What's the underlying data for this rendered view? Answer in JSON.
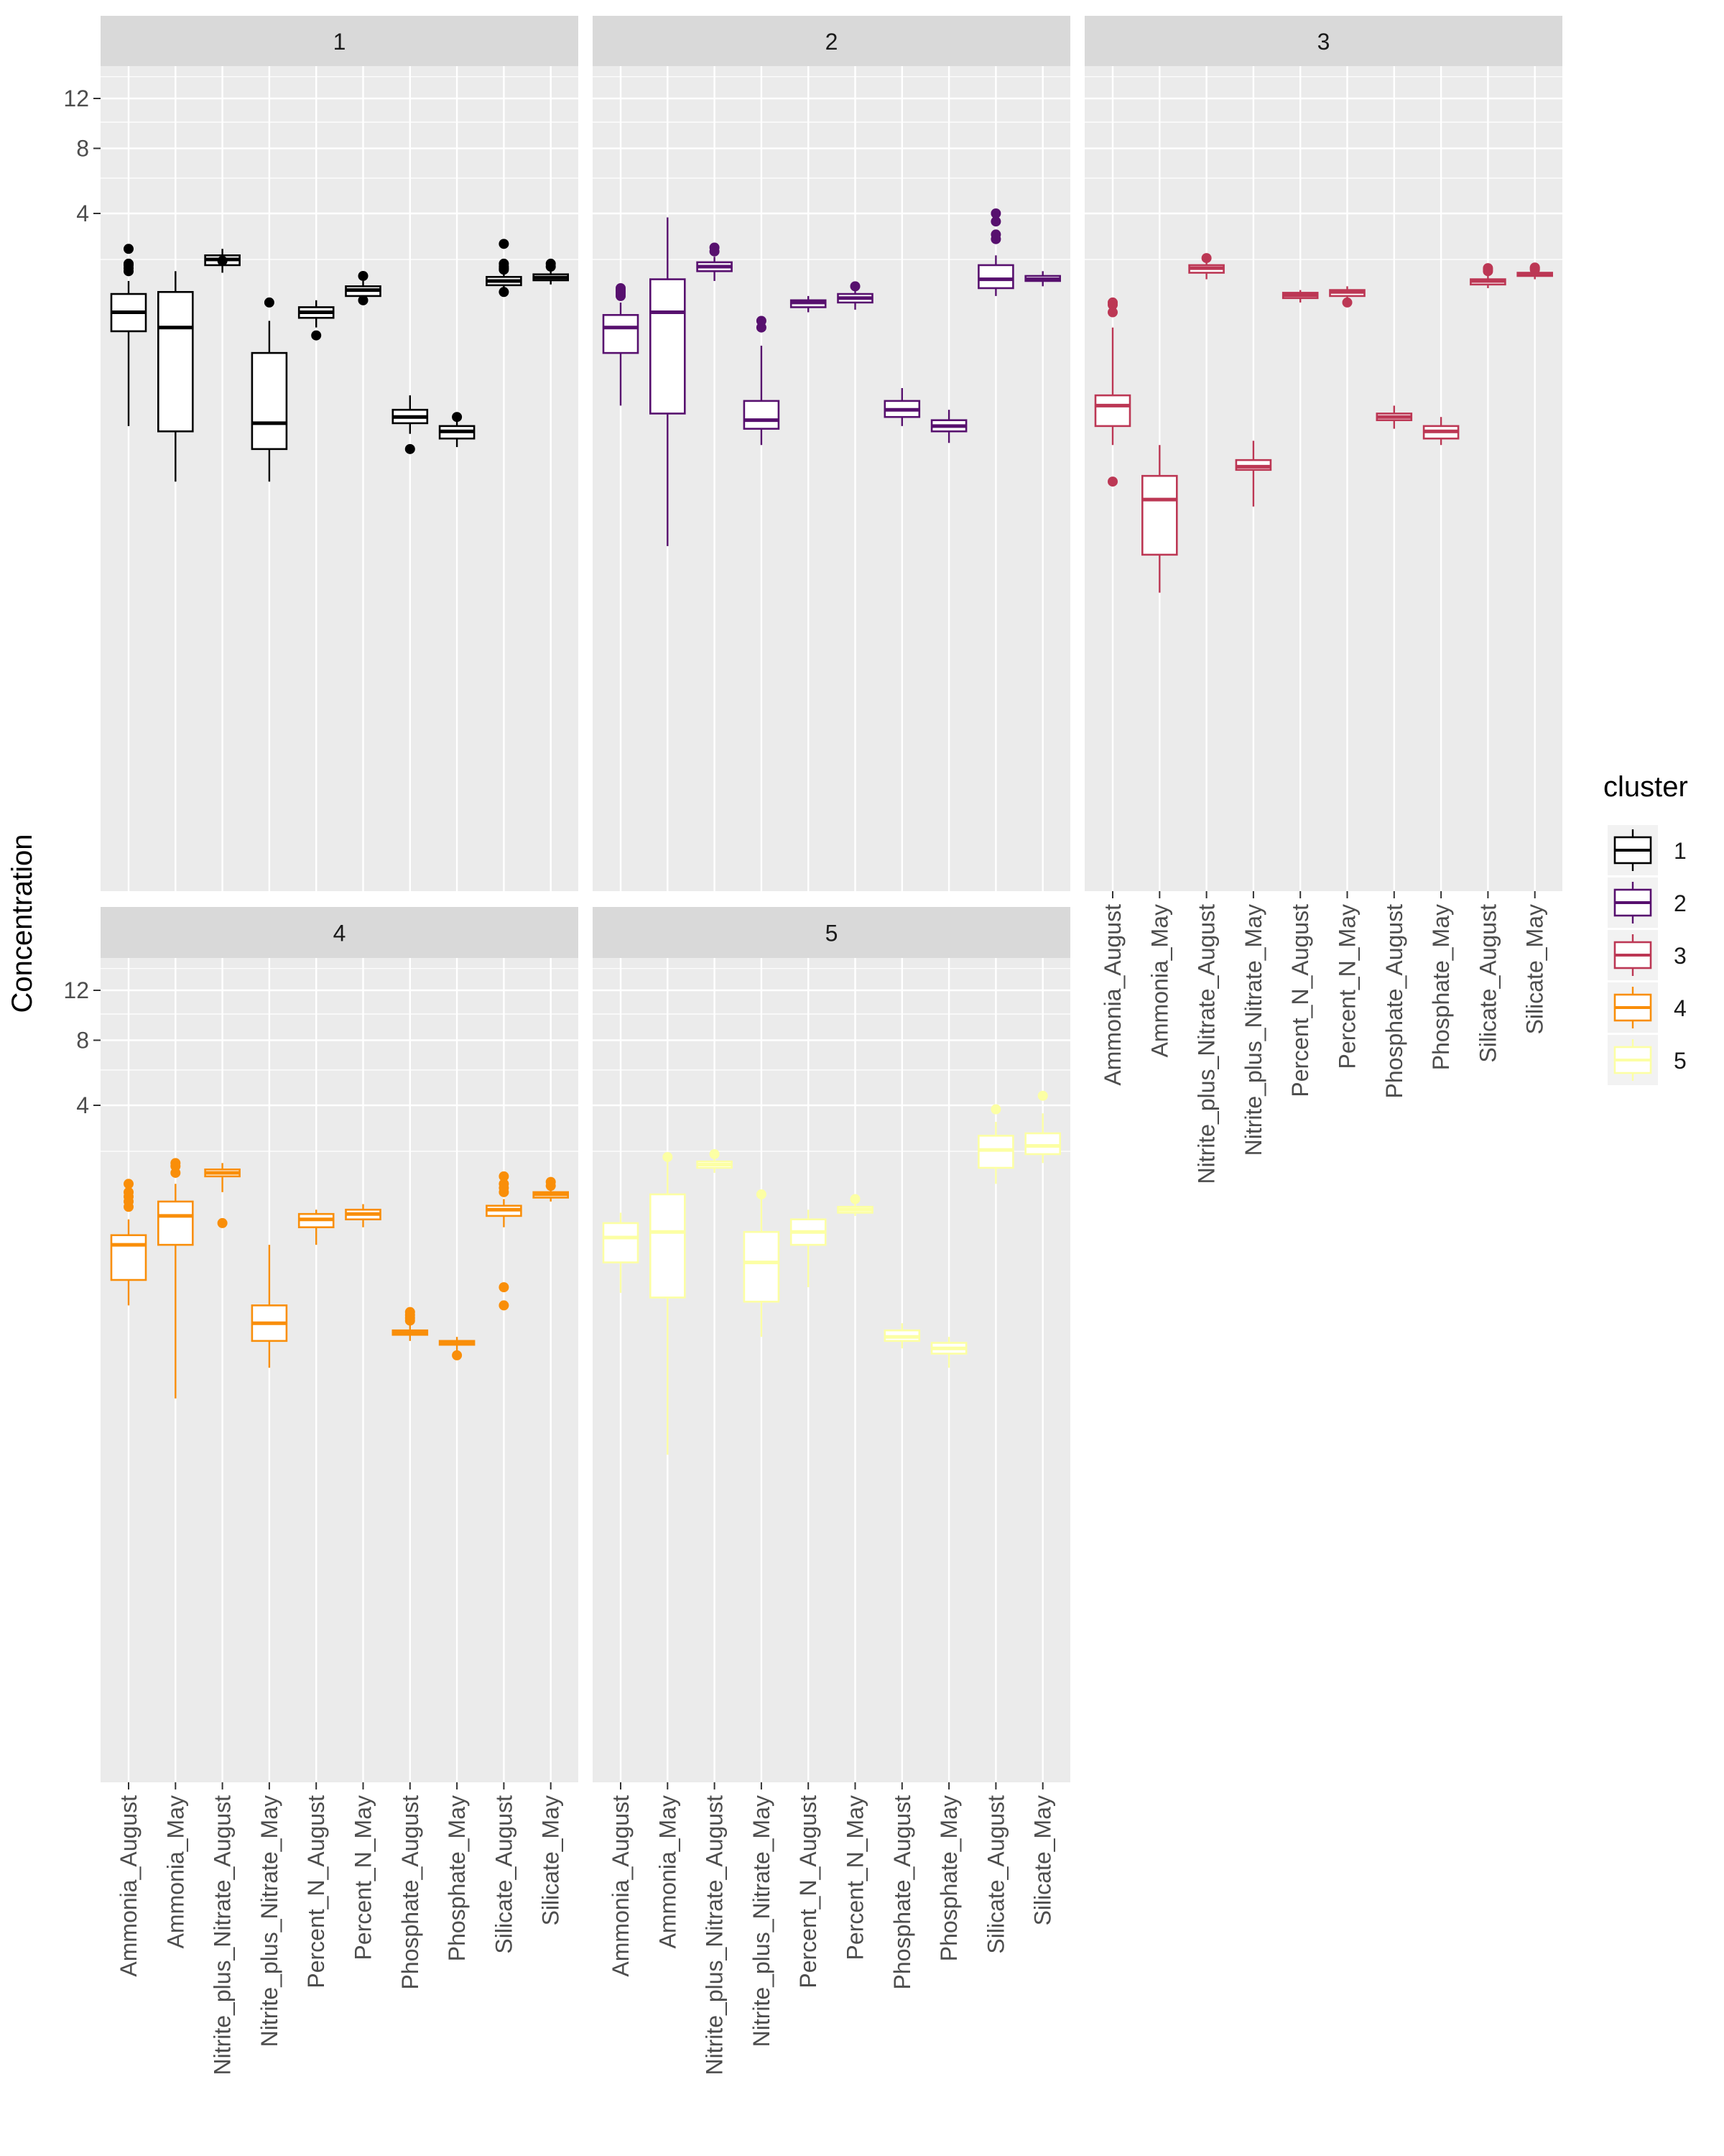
{
  "chart_data": {
    "type": "boxplot",
    "facet_by": "cluster",
    "ylabel": "Concentration",
    "yscale": "sqrt",
    "yticks": [
      4,
      8,
      12
    ],
    "categories": [
      "Ammonia_August",
      "Ammonia_May",
      "Nitrite_plus_Nitrate_August",
      "Nitrite_plus_Nitrate_May",
      "Percent_N_August",
      "Percent_N_May",
      "Phosphate_August",
      "Phosphate_May",
      "Silicate_August",
      "Silicate_May"
    ],
    "legend": {
      "title": "cluster",
      "position": "right",
      "entries": [
        {
          "label": "1",
          "color": "#000000"
        },
        {
          "label": "2",
          "color": "#57106e"
        },
        {
          "label": "3",
          "color": "#bc3754"
        },
        {
          "label": "4",
          "color": "#f98e09"
        },
        {
          "label": "5",
          "color": "#fcffa4"
        }
      ]
    },
    "panels": [
      {
        "title": "1",
        "color": "#000000",
        "boxes": [
          {
            "category": "Ammonia_August",
            "stats": [
              -0.5,
              0.25,
              0.55,
              0.95,
              1.3
            ],
            "outliers": [
              1.6,
              1.7,
              1.8,
              1.85,
              2.4
            ]
          },
          {
            "category": "Ammonia_May",
            "stats": [
              -2.0,
              -0.6,
              0.3,
              1.0,
              1.6
            ],
            "outliers": []
          },
          {
            "category": "Nitrite_plus_Nitrate_August",
            "stats": [
              1.55,
              1.8,
              2.0,
              2.15,
              2.4
            ],
            "outliers": [
              1.95
            ]
          },
          {
            "category": "Nitrite_plus_Nitrate_May",
            "stats": [
              -2.0,
              -1.0,
              -0.45,
              0.05,
              0.4
            ],
            "outliers": [
              0.75
            ]
          },
          {
            "category": "Percent_N_August",
            "stats": [
              0.3,
              0.45,
              0.55,
              0.65,
              0.8
            ],
            "outliers": [
              0.2
            ]
          },
          {
            "category": "Percent_N_May",
            "stats": [
              0.7,
              0.9,
              1.05,
              1.15,
              1.3
            ],
            "outliers": [
              1.45,
              0.8
            ]
          },
          {
            "category": "Phosphate_August",
            "stats": [
              -0.65,
              -0.45,
              -0.35,
              -0.25,
              -0.1
            ],
            "outliers": [
              -1.0
            ]
          },
          {
            "category": "Phosphate_May",
            "stats": [
              -0.95,
              -0.75,
              -0.6,
              -0.5,
              -0.35
            ],
            "outliers": [
              -0.35
            ]
          },
          {
            "category": "Silicate_August",
            "stats": [
              1.0,
              1.18,
              1.3,
              1.42,
              1.6
            ],
            "outliers": [
              1.85,
              1.75,
              1.7,
              1.65,
              1.0,
              2.6
            ]
          },
          {
            "category": "Silicate_May",
            "stats": [
              1.2,
              1.32,
              1.4,
              1.5,
              1.6
            ],
            "outliers": [
              1.75,
              1.85
            ]
          }
        ]
      },
      {
        "title": "2",
        "color": "#57106e",
        "boxes": [
          {
            "category": "Ammonia_August",
            "stats": [
              -0.2,
              0.05,
              0.3,
              0.5,
              0.75
            ],
            "outliers": [
              0.9,
              0.95,
              1.0,
              1.05,
              1.1
            ]
          },
          {
            "category": "Ammonia_May",
            "stats": [
              -5.0,
              -0.3,
              0.55,
              1.35,
              3.8
            ],
            "outliers": []
          },
          {
            "category": "Nitrite_plus_Nitrate_August",
            "stats": [
              1.3,
              1.6,
              1.75,
              1.9,
              2.1
            ],
            "outliers": [
              2.3,
              2.45
            ]
          },
          {
            "category": "Nitrite_plus_Nitrate_May",
            "stats": [
              -0.9,
              -0.55,
              -0.4,
              -0.15,
              0.1
            ],
            "outliers": [
              0.3,
              0.4
            ]
          },
          {
            "category": "Percent_N_August",
            "stats": [
              0.55,
              0.65,
              0.75,
              0.8,
              0.9
            ],
            "outliers": []
          },
          {
            "category": "Percent_N_May",
            "stats": [
              0.6,
              0.75,
              0.85,
              0.95,
              1.05
            ],
            "outliers": [
              1.15
            ]
          },
          {
            "category": "Phosphate_August",
            "stats": [
              -0.5,
              -0.35,
              -0.25,
              -0.15,
              -0.05
            ],
            "outliers": []
          },
          {
            "category": "Phosphate_May",
            "stats": [
              -0.85,
              -0.6,
              -0.5,
              -0.4,
              -0.25
            ],
            "outliers": []
          },
          {
            "category": "Silicate_August",
            "stats": [
              0.9,
              1.1,
              1.35,
              1.8,
              2.15
            ],
            "outliers": [
              2.8,
              3.0,
              3.6,
              4.0
            ]
          },
          {
            "category": "Silicate_May",
            "stats": [
              1.15,
              1.3,
              1.35,
              1.45,
              1.6
            ],
            "outliers": []
          }
        ]
      },
      {
        "title": "3",
        "color": "#bc3754",
        "boxes": [
          {
            "category": "Ammonia_August",
            "stats": [
              -0.9,
              -0.5,
              -0.2,
              -0.1,
              0.3
            ],
            "outliers": [
              0.55,
              0.7,
              0.75,
              -2.0
            ]
          },
          {
            "category": "Ammonia_May",
            "stats": [
              -8.0,
              -5.5,
              -2.7,
              -1.8,
              -0.9
            ],
            "outliers": []
          },
          {
            "category": "Nitrite_plus_Nitrate_August",
            "stats": [
              1.35,
              1.55,
              1.7,
              1.8,
              1.95
            ],
            "outliers": [
              2.05
            ]
          },
          {
            "category": "Nitrite_plus_Nitrate_May",
            "stats": [
              -3.0,
              -1.6,
              -1.5,
              -1.3,
              -0.8
            ],
            "outliers": []
          },
          {
            "category": "Percent_N_August",
            "stats": [
              0.75,
              0.85,
              0.92,
              0.98,
              1.05
            ],
            "outliers": []
          },
          {
            "category": "Percent_N_May",
            "stats": [
              0.8,
              0.9,
              1.0,
              1.05,
              1.15
            ],
            "outliers": [
              0.75
            ]
          },
          {
            "category": "Phosphate_August",
            "stats": [
              -0.55,
              -0.4,
              -0.35,
              -0.3,
              -0.2
            ],
            "outliers": []
          },
          {
            "category": "Phosphate_May",
            "stats": [
              -0.9,
              -0.75,
              -0.6,
              -0.5,
              -0.35
            ],
            "outliers": []
          },
          {
            "category": "Silicate_August",
            "stats": [
              1.1,
              1.2,
              1.3,
              1.35,
              1.45
            ],
            "outliers": [
              1.6,
              1.65,
              1.7
            ]
          },
          {
            "category": "Silicate_May",
            "stats": [
              1.35,
              1.45,
              1.5,
              1.55,
              1.6
            ],
            "outliers": [
              1.65,
              1.7,
              1.72
            ]
          }
        ]
      },
      {
        "title": "4",
        "color": "#f98e09",
        "boxes": [
          {
            "category": "Ammonia_August",
            "stats": [
              -0.3,
              -0.05,
              0.05,
              0.12,
              0.3
            ],
            "outliers": [
              0.5,
              0.6,
              0.7,
              0.8,
              1.0
            ]
          },
          {
            "category": "Ammonia_May",
            "stats": [
              -3.0,
              0.05,
              0.35,
              0.6,
              1.0
            ],
            "outliers": [
              1.3,
              1.5,
              1.6
            ]
          },
          {
            "category": "Nitrite_plus_Nitrate_August",
            "stats": [
              0.8,
              1.2,
              1.3,
              1.4,
              1.6
            ],
            "outliers": [
              0.25
            ]
          },
          {
            "category": "Nitrite_plus_Nitrate_May",
            "stats": [
              -1.8,
              -1.0,
              -0.6,
              -0.3,
              0.05
            ],
            "outliers": []
          },
          {
            "category": "Percent_N_August",
            "stats": [
              0.05,
              0.2,
              0.3,
              0.38,
              0.45
            ],
            "outliers": []
          },
          {
            "category": "Percent_N_May",
            "stats": [
              0.2,
              0.3,
              0.38,
              0.45,
              0.55
            ],
            "outliers": []
          },
          {
            "category": "Phosphate_August",
            "stats": [
              -1.0,
              -0.85,
              -0.8,
              -0.75,
              -0.6
            ],
            "outliers": [
              -0.55,
              -0.5,
              -0.45,
              -0.4
            ]
          },
          {
            "category": "Phosphate_May",
            "stats": [
              -1.4,
              -1.1,
              -1.05,
              -1.0,
              -0.9
            ],
            "outliers": [
              -1.4
            ]
          },
          {
            "category": "Silicate_August",
            "stats": [
              0.2,
              0.35,
              0.45,
              0.52,
              0.65
            ],
            "outliers": [
              0.8,
              0.9,
              1.0,
              1.2,
              -0.1,
              -0.3
            ]
          },
          {
            "category": "Silicate_May",
            "stats": [
              0.6,
              0.68,
              0.75,
              0.8,
              0.88
            ],
            "outliers": [
              0.95,
              1.05
            ]
          }
        ]
      },
      {
        "title": "5",
        "color": "#fcffa4",
        "boxes": [
          {
            "category": "Ammonia_August",
            "stats": [
              -0.15,
              0.0,
              0.1,
              0.25,
              0.4
            ],
            "outliers": []
          },
          {
            "category": "Ammonia_May",
            "stats": [
              -6.0,
              -0.2,
              0.15,
              0.75,
              1.8
            ],
            "outliers": [
              1.8
            ]
          },
          {
            "category": "Nitrite_plus_Nitrate_August",
            "stats": [
              1.3,
              1.45,
              1.55,
              1.65,
              1.8
            ],
            "outliers": [
              1.9
            ]
          },
          {
            "category": "Nitrite_plus_Nitrate_May",
            "stats": [
              -0.9,
              -0.25,
              0.0,
              0.15,
              0.75
            ],
            "outliers": [
              0.75
            ]
          },
          {
            "category": "Percent_N_August",
            "stats": [
              -0.1,
              0.05,
              0.15,
              0.3,
              0.45
            ],
            "outliers": []
          },
          {
            "category": "Percent_N_May",
            "stats": [
              0.35,
              0.4,
              0.45,
              0.5,
              0.65
            ],
            "outliers": [
              0.65
            ]
          },
          {
            "category": "Phosphate_August",
            "stats": [
              -1.2,
              -1.0,
              -0.9,
              -0.75,
              -0.6
            ],
            "outliers": []
          },
          {
            "category": "Phosphate_May",
            "stats": [
              -1.8,
              -1.35,
              -1.2,
              -1.05,
              -0.9
            ],
            "outliers": []
          },
          {
            "category": "Silicate_August",
            "stats": [
              1.0,
              1.45,
              2.05,
              2.6,
              3.2
            ],
            "outliers": [
              3.8
            ]
          },
          {
            "category": "Silicate_May",
            "stats": [
              1.6,
              1.9,
              2.2,
              2.7,
              3.6
            ],
            "outliers": [
              4.5
            ]
          }
        ]
      }
    ]
  }
}
